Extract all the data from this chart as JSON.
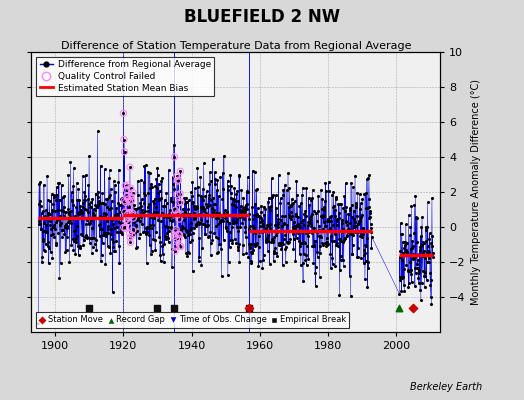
{
  "title": "BLUEFIELD 2 NW",
  "subtitle": "Difference of Station Temperature Data from Regional Average",
  "ylabel": "Monthly Temperature Anomaly Difference (°C)",
  "xlabel_years": [
    1900,
    1920,
    1940,
    1960,
    1980,
    2000
  ],
  "ylim": [
    -6,
    10
  ],
  "xlim": [
    1893,
    2013
  ],
  "bg_color": "#d8d8d8",
  "plot_bg_color": "#f0f0f0",
  "line_color": "#0000dd",
  "dot_color": "#000000",
  "bias_line_color": "#ff0000",
  "qc_color": "#ff88ff",
  "station_move_color": "#cc0000",
  "record_gap_color": "#006600",
  "tobs_color": "#0000cc",
  "emp_break_color": "#111111",
  "watermark": "Berkeley Earth",
  "seed": 42,
  "bias_segments": [
    {
      "start": 1895,
      "end": 1920,
      "value": 0.5
    },
    {
      "start": 1920,
      "end": 1957,
      "value": 0.7
    },
    {
      "start": 1957,
      "end": 1993,
      "value": -0.2
    },
    {
      "start": 2001,
      "end": 2011,
      "value": -1.6
    }
  ],
  "break_verticals": [
    1920,
    1935,
    1957
  ],
  "station_moves": [
    1957,
    2005
  ],
  "record_gaps": [
    2001
  ],
  "emp_breaks": [
    1910,
    1930,
    1935,
    1957
  ],
  "qc_years": [
    1920,
    1921,
    1922,
    1935,
    1936
  ],
  "gap_start": 1993,
  "gap_end": 2001
}
